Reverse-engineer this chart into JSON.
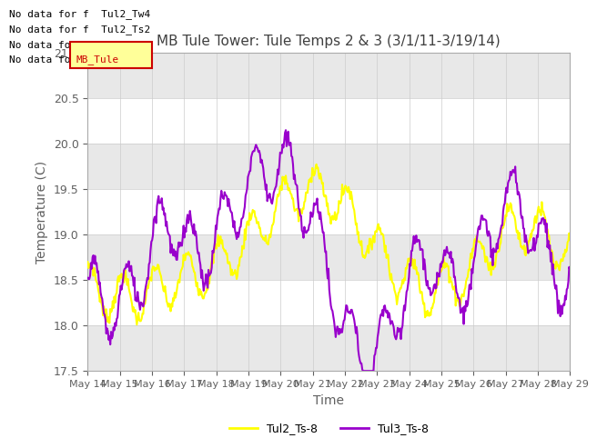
{
  "title": "MB Tule Tower: Tule Temps 2 & 3 (3/1/11-3/19/14)",
  "xlabel": "Time",
  "ylabel": "Temperature (C)",
  "ylim": [
    17.5,
    21.0
  ],
  "yticks": [
    17.5,
    18.0,
    18.5,
    19.0,
    19.5,
    20.0,
    20.5,
    21.0
  ],
  "xtick_labels": [
    "May 14",
    "May 15",
    "May 16",
    "May 17",
    "May 18",
    "May 19",
    "May 20",
    "May 21",
    "May 22",
    "May 23",
    "May 24",
    "May 25",
    "May 26",
    "May 27",
    "May 28",
    "May 29"
  ],
  "color_tul2": "#ffff00",
  "color_tul3": "#9900cc",
  "legend_labels": [
    "Tul2_Ts-8",
    "Tul3_Ts-8"
  ],
  "no_data_texts": [
    "No data for f  Tul2_Tw4",
    "No data for f  Tul2_Ts2",
    "No data for f  Tul3_Tw4",
    "No data for f  MB_Tule"
  ],
  "bg_color": "#ffffff",
  "plot_bg_color": "#ffffff",
  "gray_band_color": "#e8e8e8",
  "title_color": "#404040",
  "axis_label_color": "#606060",
  "tick_color": "#606060"
}
